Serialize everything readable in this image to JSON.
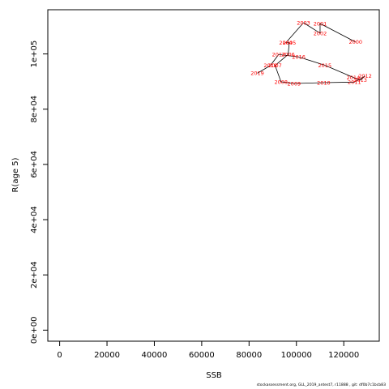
{
  "chart_data": {
    "type": "line",
    "xlabel": "SSB",
    "ylabel": "R(age 5)",
    "xlim": [
      -5000,
      135000
    ],
    "ylim": [
      -4000,
      116000
    ],
    "xticks": [
      0,
      20000,
      40000,
      60000,
      80000,
      100000,
      120000
    ],
    "xtick_labels": [
      "0",
      "20000",
      "40000",
      "60000",
      "80000",
      "100000",
      "120000"
    ],
    "yticks": [
      0,
      20000,
      40000,
      60000,
      80000,
      100000
    ],
    "ytick_labels": [
      "0e+00",
      "2e+04",
      "4e+04",
      "6e+04",
      "8e+04",
      "1e+05"
    ],
    "grid": false,
    "line_color": "#000000",
    "label_color": "#ff0000",
    "points": [
      {
        "year": "2000",
        "x": 125000,
        "y": 104300
      },
      {
        "year": "2001",
        "x": 110000,
        "y": 111000
      },
      {
        "year": "2002",
        "x": 110000,
        "y": 107500
      },
      {
        "year": "2003",
        "x": 103000,
        "y": 111300
      },
      {
        "year": "2004",
        "x": 95500,
        "y": 104000
      },
      {
        "year": "2005",
        "x": 97000,
        "y": 104100
      },
      {
        "year": "2006",
        "x": 96500,
        "y": 99800
      },
      {
        "year": "2007",
        "x": 91000,
        "y": 95800
      },
      {
        "year": "2008",
        "x": 93500,
        "y": 89900
      },
      {
        "year": "2009",
        "x": 99000,
        "y": 89300
      },
      {
        "year": "2010",
        "x": 111500,
        "y": 89600
      },
      {
        "year": "2011",
        "x": 124500,
        "y": 89800
      },
      {
        "year": "2012",
        "x": 129000,
        "y": 92000
      },
      {
        "year": "2013",
        "x": 127000,
        "y": 90500
      },
      {
        "year": "2014",
        "x": 124000,
        "y": 91500
      },
      {
        "year": "2015",
        "x": 112000,
        "y": 95900
      },
      {
        "year": "2016",
        "x": 101000,
        "y": 98900
      },
      {
        "year": "2017",
        "x": 92500,
        "y": 99800
      },
      {
        "year": "2018",
        "x": 89000,
        "y": 95800
      },
      {
        "year": "2019",
        "x": 83500,
        "y": 93000
      }
    ]
  },
  "footer": "stockassessment.org, GLL_2019_antest7, r11888 , git: df0b7c1bcb83"
}
